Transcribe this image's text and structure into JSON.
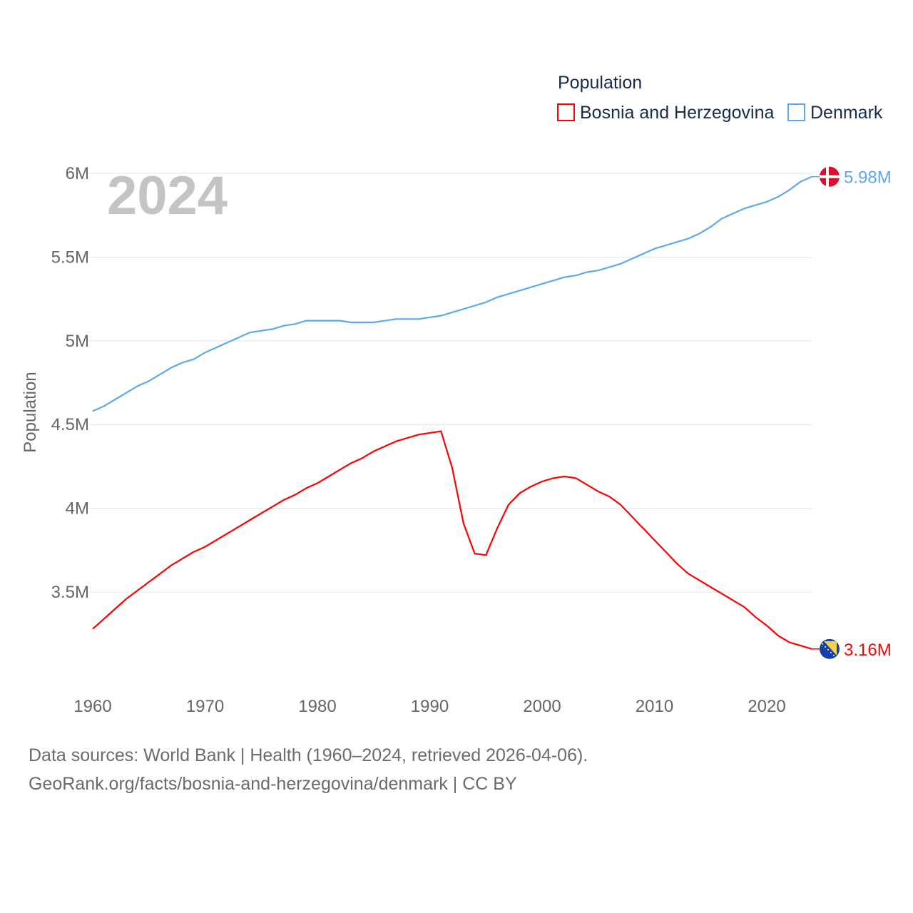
{
  "chart_data": {
    "type": "line",
    "title": "",
    "xlabel": "",
    "ylabel": "Population",
    "year_label": "2024",
    "legend": {
      "title": "Population",
      "placement": "top-right"
    },
    "xlim": [
      1960,
      2024
    ],
    "ylim": [
      3.0,
      6.0
    ],
    "x_ticks": [
      "1960",
      "1970",
      "1980",
      "1990",
      "2000",
      "2010",
      "2020"
    ],
    "x_tick_values": [
      1960,
      1970,
      1980,
      1990,
      2000,
      2010,
      2020
    ],
    "y_ticks": [
      "3.5M",
      "4M",
      "4.5M",
      "5M",
      "5.5M",
      "6M"
    ],
    "y_tick_values": [
      3.5,
      4,
      4.5,
      5,
      5.5,
      6
    ],
    "grid": true,
    "series": [
      {
        "name": "Bosnia and Herzegovina",
        "color": "#ff0000",
        "end_label": "3.16M",
        "flag": "bosnia-flag-icon",
        "points": [
          [
            1960,
            3.28
          ],
          [
            1961,
            3.34
          ],
          [
            1962,
            3.4
          ],
          [
            1963,
            3.46
          ],
          [
            1964,
            3.51
          ],
          [
            1965,
            3.56
          ],
          [
            1966,
            3.61
          ],
          [
            1967,
            3.66
          ],
          [
            1968,
            3.7
          ],
          [
            1969,
            3.74
          ],
          [
            1970,
            3.77
          ],
          [
            1971,
            3.81
          ],
          [
            1972,
            3.85
          ],
          [
            1973,
            3.89
          ],
          [
            1974,
            3.93
          ],
          [
            1975,
            3.97
          ],
          [
            1976,
            4.01
          ],
          [
            1977,
            4.05
          ],
          [
            1978,
            4.08
          ],
          [
            1979,
            4.12
          ],
          [
            1980,
            4.15
          ],
          [
            1981,
            4.19
          ],
          [
            1982,
            4.23
          ],
          [
            1983,
            4.27
          ],
          [
            1984,
            4.3
          ],
          [
            1985,
            4.34
          ],
          [
            1986,
            4.37
          ],
          [
            1987,
            4.4
          ],
          [
            1988,
            4.42
          ],
          [
            1989,
            4.44
          ],
          [
            1990,
            4.45
          ],
          [
            1991,
            4.46
          ],
          [
            1992,
            4.24
          ],
          [
            1993,
            3.91
          ],
          [
            1994,
            3.73
          ],
          [
            1995,
            3.72
          ],
          [
            1996,
            3.88
          ],
          [
            1997,
            4.02
          ],
          [
            1998,
            4.09
          ],
          [
            1999,
            4.13
          ],
          [
            2000,
            4.16
          ],
          [
            2001,
            4.18
          ],
          [
            2002,
            4.19
          ],
          [
            2003,
            4.18
          ],
          [
            2004,
            4.14
          ],
          [
            2005,
            4.1
          ],
          [
            2006,
            4.07
          ],
          [
            2007,
            4.02
          ],
          [
            2008,
            3.95
          ],
          [
            2009,
            3.88
          ],
          [
            2010,
            3.81
          ],
          [
            2011,
            3.74
          ],
          [
            2012,
            3.67
          ],
          [
            2013,
            3.61
          ],
          [
            2014,
            3.57
          ],
          [
            2015,
            3.53
          ],
          [
            2016,
            3.49
          ],
          [
            2017,
            3.45
          ],
          [
            2018,
            3.41
          ],
          [
            2019,
            3.35
          ],
          [
            2020,
            3.3
          ],
          [
            2021,
            3.24
          ],
          [
            2022,
            3.2
          ],
          [
            2023,
            3.18
          ],
          [
            2024,
            3.16
          ]
        ]
      },
      {
        "name": "Denmark",
        "color": "#5da8ee",
        "end_label": "5.98M",
        "flag": "denmark-flag-icon",
        "points": [
          [
            1960,
            4.58
          ],
          [
            1961,
            4.61
          ],
          [
            1962,
            4.65
          ],
          [
            1963,
            4.69
          ],
          [
            1964,
            4.73
          ],
          [
            1965,
            4.76
          ],
          [
            1966,
            4.8
          ],
          [
            1967,
            4.84
          ],
          [
            1968,
            4.87
          ],
          [
            1969,
            4.89
          ],
          [
            1970,
            4.93
          ],
          [
            1971,
            4.96
          ],
          [
            1972,
            4.99
          ],
          [
            1973,
            5.02
          ],
          [
            1974,
            5.05
          ],
          [
            1975,
            5.06
          ],
          [
            1976,
            5.07
          ],
          [
            1977,
            5.09
          ],
          [
            1978,
            5.1
          ],
          [
            1979,
            5.12
          ],
          [
            1980,
            5.12
          ],
          [
            1981,
            5.12
          ],
          [
            1982,
            5.12
          ],
          [
            1983,
            5.11
          ],
          [
            1984,
            5.11
          ],
          [
            1985,
            5.11
          ],
          [
            1986,
            5.12
          ],
          [
            1987,
            5.13
          ],
          [
            1988,
            5.13
          ],
          [
            1989,
            5.13
          ],
          [
            1990,
            5.14
          ],
          [
            1991,
            5.15
          ],
          [
            1992,
            5.17
          ],
          [
            1993,
            5.19
          ],
          [
            1994,
            5.21
          ],
          [
            1995,
            5.23
          ],
          [
            1996,
            5.26
          ],
          [
            1997,
            5.28
          ],
          [
            1998,
            5.3
          ],
          [
            1999,
            5.32
          ],
          [
            2000,
            5.34
          ],
          [
            2001,
            5.36
          ],
          [
            2002,
            5.38
          ],
          [
            2003,
            5.39
          ],
          [
            2004,
            5.41
          ],
          [
            2005,
            5.42
          ],
          [
            2006,
            5.44
          ],
          [
            2007,
            5.46
          ],
          [
            2008,
            5.49
          ],
          [
            2009,
            5.52
          ],
          [
            2010,
            5.55
          ],
          [
            2011,
            5.57
          ],
          [
            2012,
            5.59
          ],
          [
            2013,
            5.61
          ],
          [
            2014,
            5.64
          ],
          [
            2015,
            5.68
          ],
          [
            2016,
            5.73
          ],
          [
            2017,
            5.76
          ],
          [
            2018,
            5.79
          ],
          [
            2019,
            5.81
          ],
          [
            2020,
            5.83
          ],
          [
            2021,
            5.86
          ],
          [
            2022,
            5.9
          ],
          [
            2023,
            5.95
          ],
          [
            2024,
            5.98
          ]
        ]
      }
    ]
  },
  "footer": {
    "line1": "Data sources: World Bank | Health (1960–2024, retrieved 2026-04-06).",
    "line2": "GeoRank.org/facts/bosnia-and-herzegovina/denmark | CC BY"
  }
}
